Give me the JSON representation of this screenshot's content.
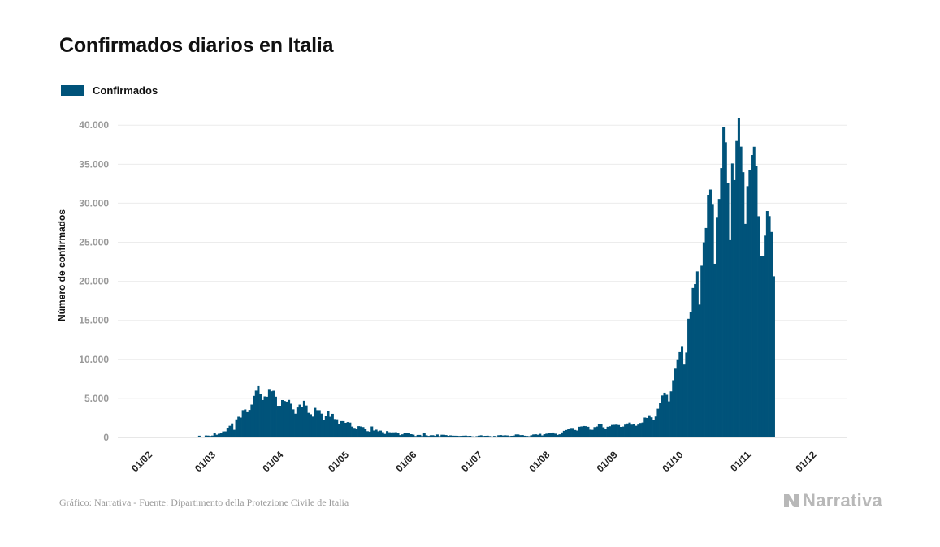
{
  "title": "Confirmados diarios en Italia",
  "legend": {
    "label": "Confirmados",
    "color": "#00537a"
  },
  "footer": "Gráfico: Narrativa - Fuente: Dipartimento della Protezione Civile de Italia",
  "logo": {
    "text": "Narrativa"
  },
  "chart_data": {
    "type": "bar",
    "ylabel": "Número de confirmados",
    "ylim": [
      0,
      42000
    ],
    "yticks": [
      0,
      5000,
      10000,
      15000,
      20000,
      25000,
      30000,
      35000,
      40000
    ],
    "ytick_labels": [
      "0",
      "5.000",
      "10.000",
      "15.000",
      "20.000",
      "25.000",
      "30.000",
      "35.000",
      "40.000"
    ],
    "x_start": "01/02",
    "x_end": "29/11",
    "xtick_labels": [
      "01/02",
      "01/03",
      "01/04",
      "01/05",
      "01/06",
      "01/07",
      "01/08",
      "01/09",
      "01/10",
      "01/11",
      "01/12"
    ],
    "grid": true,
    "series": [
      {
        "name": "Confirmados",
        "color": "#00537a",
        "x_first": "24/02",
        "values": [
          221,
          93,
          78,
          250,
          238,
          189,
          240,
          561,
          347,
          466,
          587,
          769,
          778,
          1247,
          1492,
          1797,
          977,
          2313,
          2651,
          2547,
          3497,
          3590,
          3233,
          3526,
          4207,
          5322,
          5986,
          6557,
          5560,
          4789,
          5249,
          5210,
          6203,
          5909,
          5974,
          5217,
          4050,
          4053,
          4782,
          4668,
          4585,
          4805,
          4316,
          3599,
          3039,
          3836,
          4204,
          3951,
          4694,
          4092,
          3153,
          2972,
          2667,
          3786,
          3493,
          3491,
          3047,
          2256,
          2729,
          3370,
          2646,
          3021,
          2357,
          2324,
          1739,
          2091,
          2086,
          1872,
          1965,
          1900,
          1389,
          1221,
          1075,
          1444,
          1401,
          1327,
          1083,
          802,
          744,
          1402,
          888,
          992,
          789,
          875,
          675,
          451,
          813,
          665,
          642,
          652,
          669,
          531,
          300,
          397,
          584,
          593,
          516,
          416,
          355,
          178,
          318,
          321,
          177,
          518,
          270,
          197,
          280,
          283,
          202,
          379,
          163,
          346,
          338,
          303,
          210,
          264,
          224,
          221,
          213,
          187,
          201,
          223,
          235,
          192,
          208,
          138,
          114,
          163,
          230,
          276,
          188,
          210,
          223,
          174,
          93,
          190,
          129,
          282,
          306,
          252,
          275,
          255,
          170,
          212,
          239,
          384,
          379,
          295,
          306,
          219,
          190,
          159,
          280,
          380,
          402,
          347,
          463,
          259,
          412,
          481,
          522,
          574,
          629,
          479,
          320,
          403,
          642,
          845,
          947,
          1071,
          1210,
          1209,
          953,
          878,
          1367,
          1411,
          1462,
          1444,
          1365,
          996,
          975,
          1326,
          1397,
          1733,
          1694,
          1297,
          1108,
          1370,
          1434,
          1597,
          1616,
          1638,
          1587,
          1350,
          1392,
          1640,
          1786,
          1907,
          1638,
          1766,
          1494,
          1648,
          1851,
          1912,
          2548,
          2499,
          2844,
          2578,
          2257,
          2677,
          3678,
          4458,
          5372,
          5724,
          5456,
          4619,
          5901,
          7332,
          8804,
          10010,
          10925,
          11705,
          9338,
          10874,
          15199,
          16079,
          19143,
          19644,
          21273,
          17012,
          21994,
          24991,
          26831,
          31084,
          31758,
          29907,
          22253,
          28244,
          30550,
          34505,
          39811,
          37809,
          32616,
          25271,
          35098,
          32961,
          37978,
          40902,
          37255,
          33979,
          27354,
          32191,
          34283,
          36176,
          37242,
          34767,
          28337,
          23232,
          23225,
          25853,
          29003,
          28352,
          26323,
          20648
        ]
      }
    ]
  }
}
